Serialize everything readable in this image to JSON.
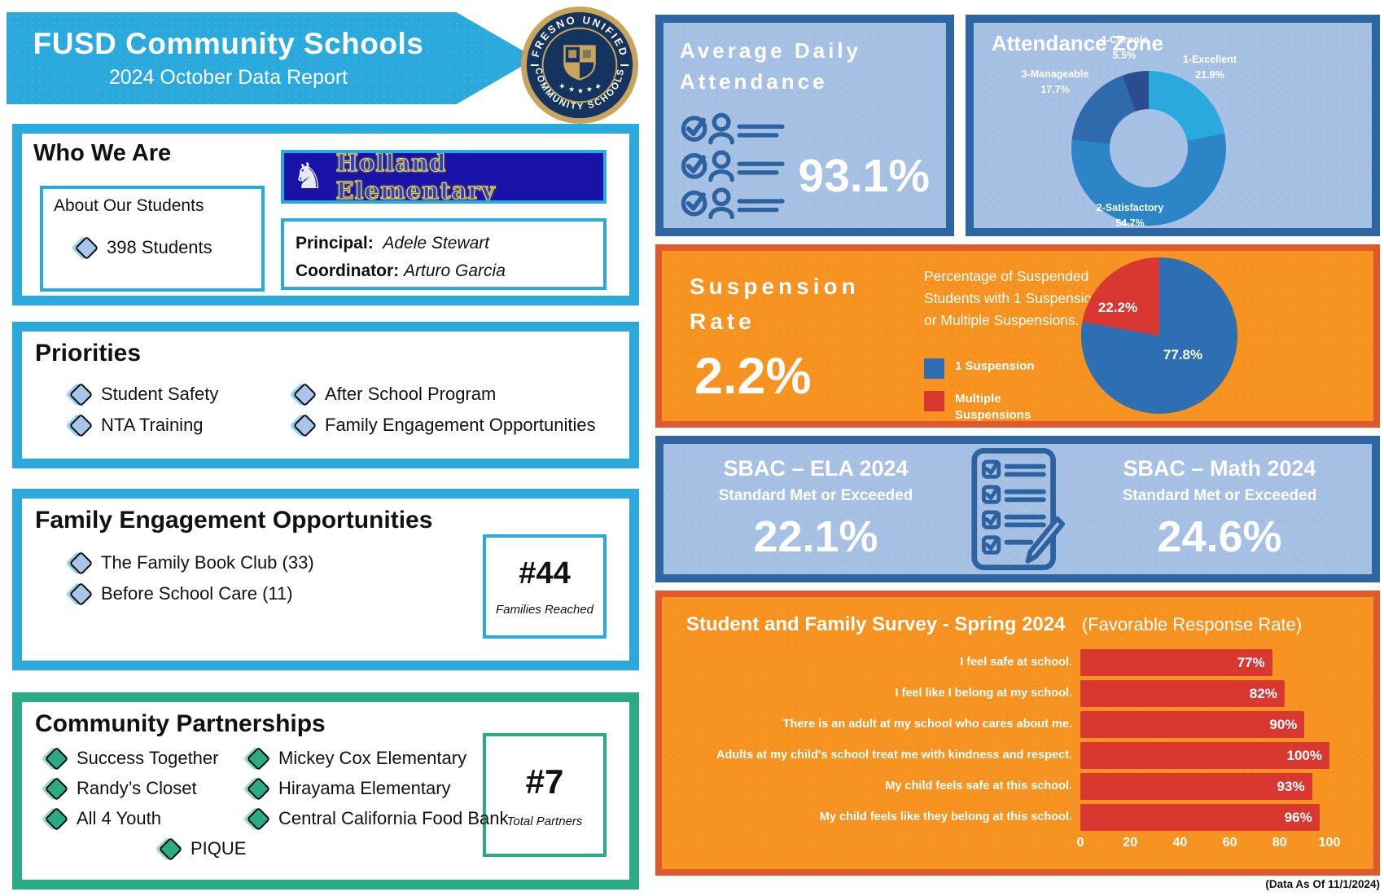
{
  "header": {
    "title": "FUSD Community Schools",
    "subtitle": "2024 October Data Report",
    "seal_top": "FRESNO UNIFIED",
    "seal_bottom": "COMMUNITY SCHOOLS"
  },
  "who_we_are": {
    "title": "Who We Are",
    "about_label": "About Our Students",
    "students": "398 Students",
    "school_banner": "Holland Elementary",
    "principal_label": "Principal:",
    "principal_name": "Adele Stewart",
    "coordinator_label": "Coordinator:",
    "coordinator_name": "Arturo Garcia"
  },
  "priorities": {
    "title": "Priorities",
    "items": [
      "Student Safety",
      "NTA Training",
      "After School Program",
      "Family Engagement Opportunities"
    ]
  },
  "family_engagement": {
    "title": "Family Engagement Opportunities",
    "items": [
      "The Family Book Club (33)",
      "Before School Care (11)"
    ],
    "count": "#44",
    "count_label": "Families Reached"
  },
  "partnerships": {
    "title": "Community Partnerships",
    "items": [
      "Success Together",
      "Randy’s Closet",
      "All 4 Youth",
      "Mickey Cox Elementary",
      "Hirayama Elementary",
      "Central California Food Bank",
      "PIQUE"
    ],
    "count": "#7",
    "count_label": "Total Partners"
  },
  "attendance": {
    "title_line1": "Average Daily",
    "title_line2": "Attendance",
    "value": "93.1%"
  },
  "attendance_zone": {
    "title": "Attendance Zone"
  },
  "suspension": {
    "title_line1": "Suspension",
    "title_line2": "Rate",
    "value": "2.2%",
    "description": "Percentage of Suspended Students with 1 Suspension or Multiple Suspensions.",
    "legend": [
      {
        "label": "1 Suspension",
        "color": "#2E6FB4"
      },
      {
        "label": "Multiple Suspensions",
        "color": "#D8382F"
      }
    ]
  },
  "sbac": {
    "ela_title": "SBAC – ELA 2024",
    "math_title": "SBAC – Math 2024",
    "subtitle": "Standard Met or Exceeded",
    "ela_value": "22.1%",
    "math_value": "24.6%"
  },
  "survey": {
    "title": "Student and Family Survey - Spring 2024",
    "subtitle": "(Favorable Response Rate)"
  },
  "footer_note": "(Data As Of 11/1/2024)",
  "colors": {
    "cyan": "#29A9DC",
    "green": "#2BAA86",
    "panel_blue_bg": "#A7C1E4",
    "panel_blue_border": "#2E66A4",
    "orange_bg": "#F79421",
    "orange_border": "#E2582D",
    "red": "#D8382F",
    "pie_blue": "#2E6FB4",
    "seal_navy": "#14335E",
    "seal_gold": "#C9A45C",
    "banner_navy": "#1812A8"
  },
  "chart_data": [
    {
      "id": "attendance_zone",
      "type": "pie",
      "donut": true,
      "title": "Attendance Zone",
      "slices": [
        {
          "label": "1-Excellent",
          "pct": "21.9%",
          "value": 21.9,
          "color": "#2AA9DF"
        },
        {
          "label": "2-Satisfactory",
          "pct": "54.7%",
          "value": 54.7,
          "color": "#2B85C6"
        },
        {
          "label": "3-Manageable",
          "pct": "17.7%",
          "value": 17.7,
          "color": "#2F6BAC"
        },
        {
          "label": "4-Chronic",
          "pct": "5.5%",
          "value": 5.5,
          "color": "#2B4C8E"
        }
      ]
    },
    {
      "id": "suspension_split",
      "type": "pie",
      "donut": false,
      "title": "Percentage of Suspended Students with 1 Suspension or Multiple Suspensions.",
      "slices": [
        {
          "label": "1 Suspension",
          "pct": "77.8%",
          "value": 77.8,
          "color": "#2E6FB4"
        },
        {
          "label": "Multiple Suspensions",
          "pct": "22.2%",
          "value": 22.2,
          "color": "#D8382F"
        }
      ]
    },
    {
      "id": "survey",
      "type": "bar",
      "orientation": "horizontal",
      "title": "Student and Family Survey - Spring 2024",
      "subtitle": "(Favorable Response Rate)",
      "bar_color": "#D8382F",
      "xlim": [
        0,
        100
      ],
      "ticks": [
        0,
        20,
        40,
        60,
        80,
        100
      ],
      "categories": [
        "I feel safe at school.",
        "I feel like I belong at my school.",
        "There is an adult at my school who cares about me.",
        "Adults at my child's school treat me with kindness and respect.",
        "My child feels safe at this school.",
        "My child feels like they belong at this school."
      ],
      "values": [
        77,
        82,
        90,
        100,
        93,
        96
      ]
    }
  ]
}
